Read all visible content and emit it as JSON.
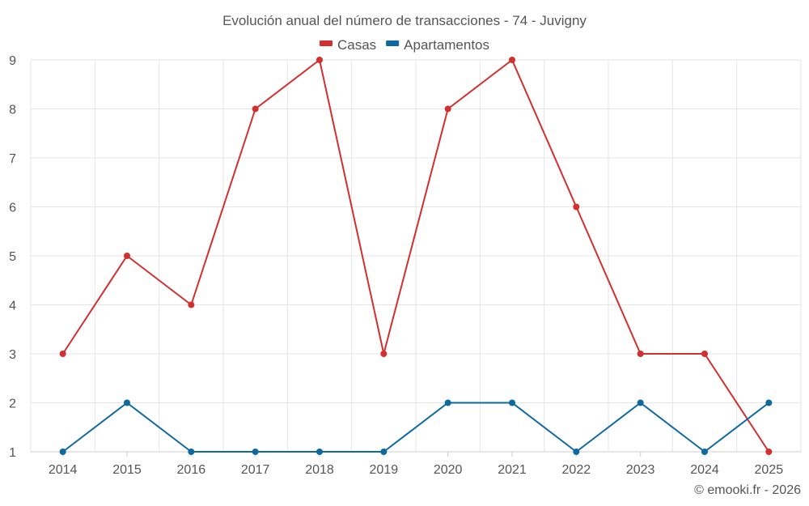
{
  "chart_data": {
    "type": "line",
    "title": "Evolución anual del número de transacciones - 74 - Juvigny",
    "categories": [
      "2014",
      "2015",
      "2016",
      "2017",
      "2018",
      "2019",
      "2020",
      "2021",
      "2022",
      "2023",
      "2024",
      "2025"
    ],
    "series": [
      {
        "name": "Casas",
        "color": "#d32f2f",
        "values": [
          3,
          5,
          4,
          8,
          9,
          3,
          8,
          9,
          6,
          3,
          3,
          1
        ]
      },
      {
        "name": "Apartamentos",
        "color": "#0d6aa1",
        "values": [
          1,
          2,
          1,
          1,
          1,
          1,
          2,
          2,
          1,
          2,
          1,
          2
        ]
      }
    ],
    "y_ticks": [
      1,
      2,
      3,
      4,
      5,
      6,
      7,
      8,
      9
    ],
    "ylim": [
      1,
      9
    ],
    "xlabel": "",
    "ylabel": "",
    "grid": true,
    "legend": "top-center"
  },
  "credit": "© emooki.fr - 2026"
}
